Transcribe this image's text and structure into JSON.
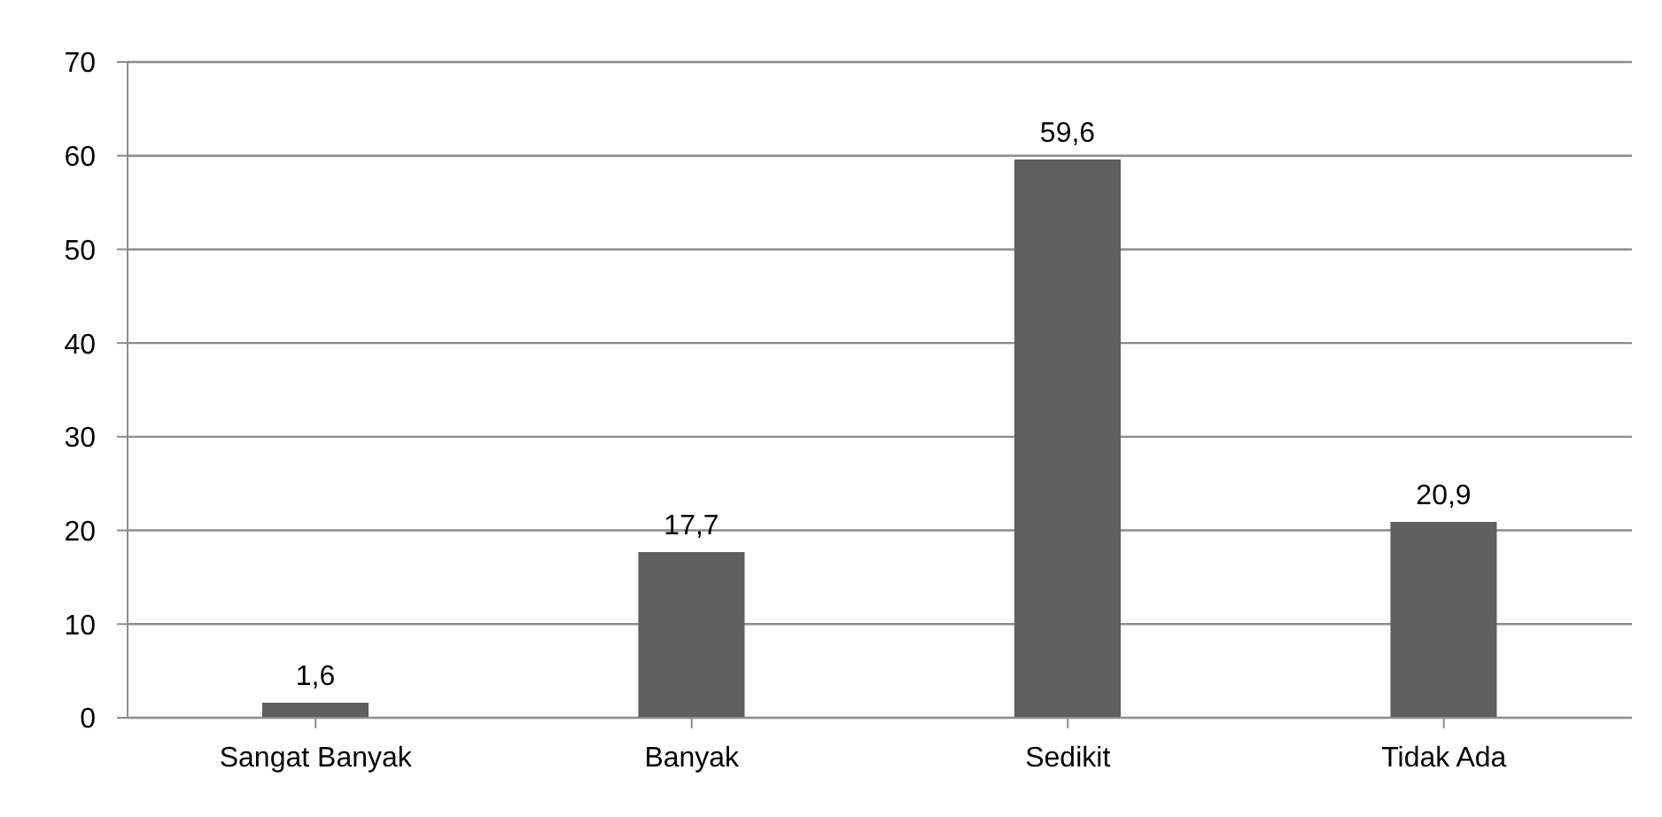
{
  "chart_data": {
    "type": "bar",
    "categories": [
      "Sangat Banyak",
      "Banyak",
      "Sedikit",
      "Tidak Ada"
    ],
    "values": [
      1.6,
      17.7,
      59.6,
      20.9
    ],
    "value_labels": [
      "1,6",
      "17,7",
      "59,6",
      "20,9"
    ],
    "color": "#5f5f5f",
    "ylim": [
      0,
      70
    ],
    "yticks": [
      0,
      10,
      20,
      30,
      40,
      50,
      60,
      70
    ],
    "grid": "y",
    "legend": false
  }
}
